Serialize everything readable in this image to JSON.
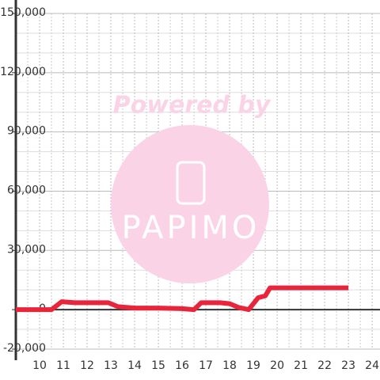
{
  "chart_data": {
    "type": "line",
    "watermark": {
      "line1": "Powered by",
      "line2": "PAPIMO"
    },
    "x": [
      9.0,
      10.5,
      10.93,
      11.5,
      12.9,
      13.3,
      14.0,
      15.0,
      16.0,
      16.5,
      16.8,
      17.6,
      18.0,
      18.4,
      18.8,
      19.2,
      19.5,
      19.7,
      23.0
    ],
    "series": [
      {
        "color": "#e8253a",
        "values": [
          0,
          0,
          4000,
          3500,
          3500,
          1500,
          800,
          800,
          500,
          0,
          3500,
          3500,
          3000,
          1000,
          0,
          6000,
          7000,
          11000,
          11000
        ]
      }
    ],
    "xlim": [
      9.0,
      24.33
    ],
    "xticks": [
      10,
      11,
      12,
      13,
      14,
      15,
      16,
      17,
      18,
      19,
      20,
      21,
      22,
      23,
      24
    ],
    "minor_xticks": [
      9.5,
      10.5,
      11.5,
      12.5,
      13.5,
      14.5,
      15.5,
      16.5,
      17.5,
      18.5,
      19.5,
      20.5,
      21.5,
      22.5,
      23.5
    ],
    "ylim": [
      -20000,
      150000
    ],
    "yticks": [
      {
        "value": -20000,
        "label": "-20,000"
      },
      0,
      {
        "value": 30000,
        "label": "30,000"
      },
      {
        "value": 60000,
        "label": "60,000"
      },
      {
        "value": 90000,
        "label": "90,000"
      },
      {
        "value": 120000,
        "label": "120,000"
      },
      {
        "value": 150000,
        "label": "150,000"
      }
    ],
    "minor_yticks": [
      -10000,
      10000,
      20000,
      40000,
      50000,
      70000,
      80000,
      100000,
      110000,
      130000,
      140000
    ],
    "grid": true
  }
}
